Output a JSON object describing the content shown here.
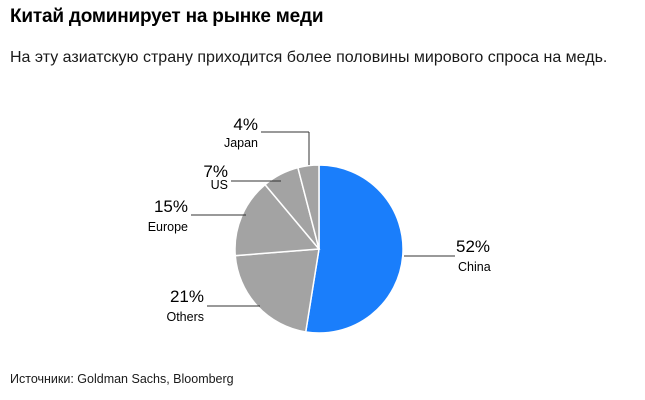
{
  "title": "Китай доминирует на рынке меди",
  "subtitle": "На эту азиатскую страну приходится более половины мирового спроса на медь.",
  "source": "Источники: Goldman Sachs, Bloomberg",
  "chart_data": {
    "type": "pie",
    "title": "Китай доминирует на рынке меди",
    "categories": [
      "China",
      "Others",
      "Europe",
      "US",
      "Japan"
    ],
    "values": [
      52,
      21,
      15,
      7,
      4
    ],
    "value_labels": [
      "52%",
      "21%",
      "15%",
      "7%",
      "4%"
    ],
    "colors": [
      "#1a7efb",
      "#a3a3a3",
      "#a3a3a3",
      "#a3a3a3",
      "#a3a3a3"
    ],
    "start_angle": "12 o'clock",
    "direction": "clockwise"
  }
}
